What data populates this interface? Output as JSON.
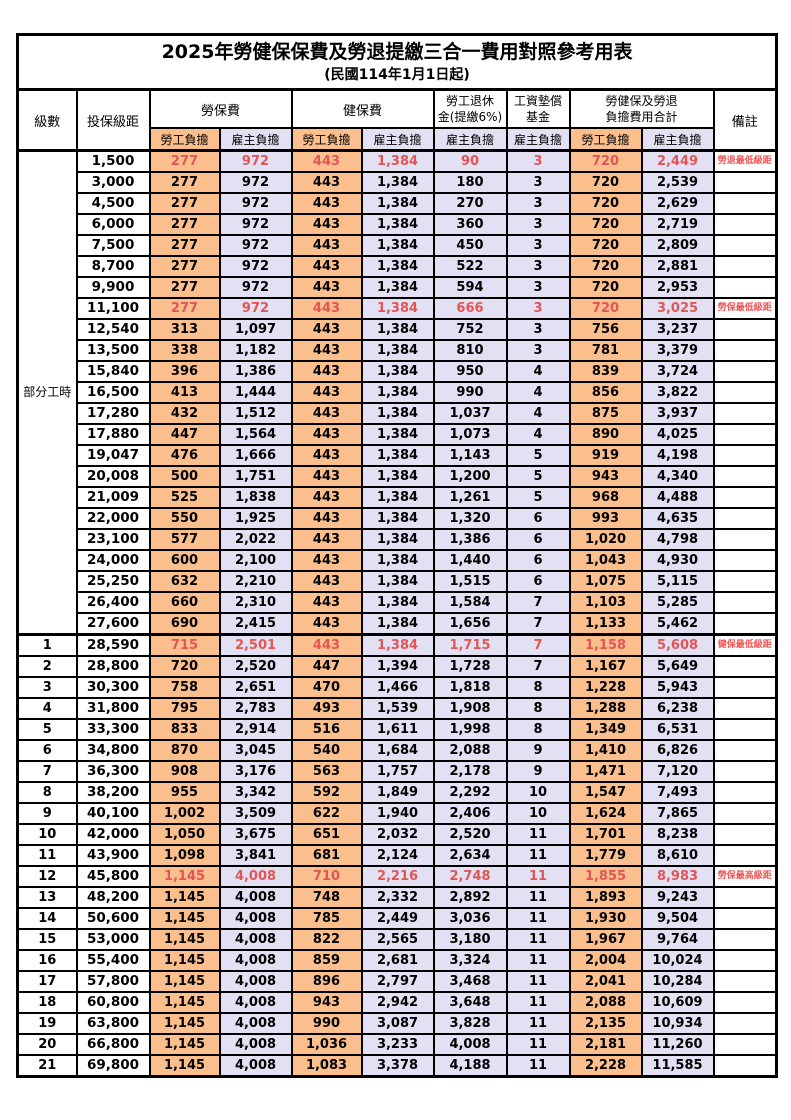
{
  "page": {
    "title": "2025年勞健保保費及勞退提繳三合一費用對照參考用表",
    "subtitle": "(民國114年1月1日起)"
  },
  "colors": {
    "employee_col_bg": "#FBBE8D",
    "employer_col_bg": "#E2E0F2",
    "highlight_text": "#E05656",
    "note_text": "#F25555",
    "border": "#000000"
  },
  "header": {
    "level": "級數",
    "bracket": "投保級距",
    "labor_group": "勞保費",
    "health_group": "健保費",
    "pension_line1": "勞工退休",
    "pension_line2": "金(提繳6%)",
    "fund_line1": "工資墊償",
    "fund_line2": "基金",
    "total_line1": "勞健保及勞退",
    "total_line2": "負擔費用合計",
    "note": "備註",
    "employee": "勞工負擔",
    "employer": "雇主負擔"
  },
  "row_group": {
    "label": "部分工時",
    "span": 23
  },
  "rows": [
    {
      "level": "",
      "bracket": "1,500",
      "labor_emp": "277",
      "labor_er": "972",
      "health_emp": "443",
      "health_er": "1,384",
      "pension_er": "90",
      "fund_er": "3",
      "total_emp": "720",
      "total_er": "2,449",
      "note": "勞退最低級距",
      "highlight": true,
      "thick_top": false
    },
    {
      "level": "",
      "bracket": "3,000",
      "labor_emp": "277",
      "labor_er": "972",
      "health_emp": "443",
      "health_er": "1,384",
      "pension_er": "180",
      "fund_er": "3",
      "total_emp": "720",
      "total_er": "2,539",
      "note": "",
      "highlight": false,
      "thick_top": false
    },
    {
      "level": "",
      "bracket": "4,500",
      "labor_emp": "277",
      "labor_er": "972",
      "health_emp": "443",
      "health_er": "1,384",
      "pension_er": "270",
      "fund_er": "3",
      "total_emp": "720",
      "total_er": "2,629",
      "note": "",
      "highlight": false,
      "thick_top": false
    },
    {
      "level": "",
      "bracket": "6,000",
      "labor_emp": "277",
      "labor_er": "972",
      "health_emp": "443",
      "health_er": "1,384",
      "pension_er": "360",
      "fund_er": "3",
      "total_emp": "720",
      "total_er": "2,719",
      "note": "",
      "highlight": false,
      "thick_top": false
    },
    {
      "level": "",
      "bracket": "7,500",
      "labor_emp": "277",
      "labor_er": "972",
      "health_emp": "443",
      "health_er": "1,384",
      "pension_er": "450",
      "fund_er": "3",
      "total_emp": "720",
      "total_er": "2,809",
      "note": "",
      "highlight": false,
      "thick_top": false
    },
    {
      "level": "",
      "bracket": "8,700",
      "labor_emp": "277",
      "labor_er": "972",
      "health_emp": "443",
      "health_er": "1,384",
      "pension_er": "522",
      "fund_er": "3",
      "total_emp": "720",
      "total_er": "2,881",
      "note": "",
      "highlight": false,
      "thick_top": false
    },
    {
      "level": "",
      "bracket": "9,900",
      "labor_emp": "277",
      "labor_er": "972",
      "health_emp": "443",
      "health_er": "1,384",
      "pension_er": "594",
      "fund_er": "3",
      "total_emp": "720",
      "total_er": "2,953",
      "note": "",
      "highlight": false,
      "thick_top": false
    },
    {
      "level": "",
      "bracket": "11,100",
      "labor_emp": "277",
      "labor_er": "972",
      "health_emp": "443",
      "health_er": "1,384",
      "pension_er": "666",
      "fund_er": "3",
      "total_emp": "720",
      "total_er": "3,025",
      "note": "勞保最低級距",
      "highlight": true,
      "thick_top": false
    },
    {
      "level": "",
      "bracket": "12,540",
      "labor_emp": "313",
      "labor_er": "1,097",
      "health_emp": "443",
      "health_er": "1,384",
      "pension_er": "752",
      "fund_er": "3",
      "total_emp": "756",
      "total_er": "3,237",
      "note": "",
      "highlight": false,
      "thick_top": false
    },
    {
      "level": "",
      "bracket": "13,500",
      "labor_emp": "338",
      "labor_er": "1,182",
      "health_emp": "443",
      "health_er": "1,384",
      "pension_er": "810",
      "fund_er": "3",
      "total_emp": "781",
      "total_er": "3,379",
      "note": "",
      "highlight": false,
      "thick_top": false
    },
    {
      "level": "",
      "bracket": "15,840",
      "labor_emp": "396",
      "labor_er": "1,386",
      "health_emp": "443",
      "health_er": "1,384",
      "pension_er": "950",
      "fund_er": "4",
      "total_emp": "839",
      "total_er": "3,724",
      "note": "",
      "highlight": false,
      "thick_top": false
    },
    {
      "level": "",
      "bracket": "16,500",
      "labor_emp": "413",
      "labor_er": "1,444",
      "health_emp": "443",
      "health_er": "1,384",
      "pension_er": "990",
      "fund_er": "4",
      "total_emp": "856",
      "total_er": "3,822",
      "note": "",
      "highlight": false,
      "thick_top": false
    },
    {
      "level": "",
      "bracket": "17,280",
      "labor_emp": "432",
      "labor_er": "1,512",
      "health_emp": "443",
      "health_er": "1,384",
      "pension_er": "1,037",
      "fund_er": "4",
      "total_emp": "875",
      "total_er": "3,937",
      "note": "",
      "highlight": false,
      "thick_top": false
    },
    {
      "level": "",
      "bracket": "17,880",
      "labor_emp": "447",
      "labor_er": "1,564",
      "health_emp": "443",
      "health_er": "1,384",
      "pension_er": "1,073",
      "fund_er": "4",
      "total_emp": "890",
      "total_er": "4,025",
      "note": "",
      "highlight": false,
      "thick_top": false
    },
    {
      "level": "",
      "bracket": "19,047",
      "labor_emp": "476",
      "labor_er": "1,666",
      "health_emp": "443",
      "health_er": "1,384",
      "pension_er": "1,143",
      "fund_er": "5",
      "total_emp": "919",
      "total_er": "4,198",
      "note": "",
      "highlight": false,
      "thick_top": false
    },
    {
      "level": "",
      "bracket": "20,008",
      "labor_emp": "500",
      "labor_er": "1,751",
      "health_emp": "443",
      "health_er": "1,384",
      "pension_er": "1,200",
      "fund_er": "5",
      "total_emp": "943",
      "total_er": "4,340",
      "note": "",
      "highlight": false,
      "thick_top": false
    },
    {
      "level": "",
      "bracket": "21,009",
      "labor_emp": "525",
      "labor_er": "1,838",
      "health_emp": "443",
      "health_er": "1,384",
      "pension_er": "1,261",
      "fund_er": "5",
      "total_emp": "968",
      "total_er": "4,488",
      "note": "",
      "highlight": false,
      "thick_top": false
    },
    {
      "level": "",
      "bracket": "22,000",
      "labor_emp": "550",
      "labor_er": "1,925",
      "health_emp": "443",
      "health_er": "1,384",
      "pension_er": "1,320",
      "fund_er": "6",
      "total_emp": "993",
      "total_er": "4,635",
      "note": "",
      "highlight": false,
      "thick_top": false
    },
    {
      "level": "",
      "bracket": "23,100",
      "labor_emp": "577",
      "labor_er": "2,022",
      "health_emp": "443",
      "health_er": "1,384",
      "pension_er": "1,386",
      "fund_er": "6",
      "total_emp": "1,020",
      "total_er": "4,798",
      "note": "",
      "highlight": false,
      "thick_top": false
    },
    {
      "level": "",
      "bracket": "24,000",
      "labor_emp": "600",
      "labor_er": "2,100",
      "health_emp": "443",
      "health_er": "1,384",
      "pension_er": "1,440",
      "fund_er": "6",
      "total_emp": "1,043",
      "total_er": "4,930",
      "note": "",
      "highlight": false,
      "thick_top": false
    },
    {
      "level": "",
      "bracket": "25,250",
      "labor_emp": "632",
      "labor_er": "2,210",
      "health_emp": "443",
      "health_er": "1,384",
      "pension_er": "1,515",
      "fund_er": "6",
      "total_emp": "1,075",
      "total_er": "5,115",
      "note": "",
      "highlight": false,
      "thick_top": false
    },
    {
      "level": "",
      "bracket": "26,400",
      "labor_emp": "660",
      "labor_er": "2,310",
      "health_emp": "443",
      "health_er": "1,384",
      "pension_er": "1,584",
      "fund_er": "7",
      "total_emp": "1,103",
      "total_er": "5,285",
      "note": "",
      "highlight": false,
      "thick_top": false
    },
    {
      "level": "",
      "bracket": "27,600",
      "labor_emp": "690",
      "labor_er": "2,415",
      "health_emp": "443",
      "health_er": "1,384",
      "pension_er": "1,656",
      "fund_er": "7",
      "total_emp": "1,133",
      "total_er": "5,462",
      "note": "",
      "highlight": false,
      "thick_top": false
    },
    {
      "level": "1",
      "bracket": "28,590",
      "labor_emp": "715",
      "labor_er": "2,501",
      "health_emp": "443",
      "health_er": "1,384",
      "pension_er": "1,715",
      "fund_er": "7",
      "total_emp": "1,158",
      "total_er": "5,608",
      "note": "健保最低級距",
      "highlight": true,
      "thick_top": true
    },
    {
      "level": "2",
      "bracket": "28,800",
      "labor_emp": "720",
      "labor_er": "2,520",
      "health_emp": "447",
      "health_er": "1,394",
      "pension_er": "1,728",
      "fund_er": "7",
      "total_emp": "1,167",
      "total_er": "5,649",
      "note": "",
      "highlight": false,
      "thick_top": false
    },
    {
      "level": "3",
      "bracket": "30,300",
      "labor_emp": "758",
      "labor_er": "2,651",
      "health_emp": "470",
      "health_er": "1,466",
      "pension_er": "1,818",
      "fund_er": "8",
      "total_emp": "1,228",
      "total_er": "5,943",
      "note": "",
      "highlight": false,
      "thick_top": false
    },
    {
      "level": "4",
      "bracket": "31,800",
      "labor_emp": "795",
      "labor_er": "2,783",
      "health_emp": "493",
      "health_er": "1,539",
      "pension_er": "1,908",
      "fund_er": "8",
      "total_emp": "1,288",
      "total_er": "6,238",
      "note": "",
      "highlight": false,
      "thick_top": false
    },
    {
      "level": "5",
      "bracket": "33,300",
      "labor_emp": "833",
      "labor_er": "2,914",
      "health_emp": "516",
      "health_er": "1,611",
      "pension_er": "1,998",
      "fund_er": "8",
      "total_emp": "1,349",
      "total_er": "6,531",
      "note": "",
      "highlight": false,
      "thick_top": false
    },
    {
      "level": "6",
      "bracket": "34,800",
      "labor_emp": "870",
      "labor_er": "3,045",
      "health_emp": "540",
      "health_er": "1,684",
      "pension_er": "2,088",
      "fund_er": "9",
      "total_emp": "1,410",
      "total_er": "6,826",
      "note": "",
      "highlight": false,
      "thick_top": false
    },
    {
      "level": "7",
      "bracket": "36,300",
      "labor_emp": "908",
      "labor_er": "3,176",
      "health_emp": "563",
      "health_er": "1,757",
      "pension_er": "2,178",
      "fund_er": "9",
      "total_emp": "1,471",
      "total_er": "7,120",
      "note": "",
      "highlight": false,
      "thick_top": false
    },
    {
      "level": "8",
      "bracket": "38,200",
      "labor_emp": "955",
      "labor_er": "3,342",
      "health_emp": "592",
      "health_er": "1,849",
      "pension_er": "2,292",
      "fund_er": "10",
      "total_emp": "1,547",
      "total_er": "7,493",
      "note": "",
      "highlight": false,
      "thick_top": false
    },
    {
      "level": "9",
      "bracket": "40,100",
      "labor_emp": "1,002",
      "labor_er": "3,509",
      "health_emp": "622",
      "health_er": "1,940",
      "pension_er": "2,406",
      "fund_er": "10",
      "total_emp": "1,624",
      "total_er": "7,865",
      "note": "",
      "highlight": false,
      "thick_top": false
    },
    {
      "level": "10",
      "bracket": "42,000",
      "labor_emp": "1,050",
      "labor_er": "3,675",
      "health_emp": "651",
      "health_er": "2,032",
      "pension_er": "2,520",
      "fund_er": "11",
      "total_emp": "1,701",
      "total_er": "8,238",
      "note": "",
      "highlight": false,
      "thick_top": false
    },
    {
      "level": "11",
      "bracket": "43,900",
      "labor_emp": "1,098",
      "labor_er": "3,841",
      "health_emp": "681",
      "health_er": "2,124",
      "pension_er": "2,634",
      "fund_er": "11",
      "total_emp": "1,779",
      "total_er": "8,610",
      "note": "",
      "highlight": false,
      "thick_top": false
    },
    {
      "level": "12",
      "bracket": "45,800",
      "labor_emp": "1,145",
      "labor_er": "4,008",
      "health_emp": "710",
      "health_er": "2,216",
      "pension_er": "2,748",
      "fund_er": "11",
      "total_emp": "1,855",
      "total_er": "8,983",
      "note": "勞保最高級距",
      "highlight": true,
      "thick_top": false
    },
    {
      "level": "13",
      "bracket": "48,200",
      "labor_emp": "1,145",
      "labor_er": "4,008",
      "health_emp": "748",
      "health_er": "2,332",
      "pension_er": "2,892",
      "fund_er": "11",
      "total_emp": "1,893",
      "total_er": "9,243",
      "note": "",
      "highlight": false,
      "thick_top": false
    },
    {
      "level": "14",
      "bracket": "50,600",
      "labor_emp": "1,145",
      "labor_er": "4,008",
      "health_emp": "785",
      "health_er": "2,449",
      "pension_er": "3,036",
      "fund_er": "11",
      "total_emp": "1,930",
      "total_er": "9,504",
      "note": "",
      "highlight": false,
      "thick_top": false
    },
    {
      "level": "15",
      "bracket": "53,000",
      "labor_emp": "1,145",
      "labor_er": "4,008",
      "health_emp": "822",
      "health_er": "2,565",
      "pension_er": "3,180",
      "fund_er": "11",
      "total_emp": "1,967",
      "total_er": "9,764",
      "note": "",
      "highlight": false,
      "thick_top": false
    },
    {
      "level": "16",
      "bracket": "55,400",
      "labor_emp": "1,145",
      "labor_er": "4,008",
      "health_emp": "859",
      "health_er": "2,681",
      "pension_er": "3,324",
      "fund_er": "11",
      "total_emp": "2,004",
      "total_er": "10,024",
      "note": "",
      "highlight": false,
      "thick_top": false
    },
    {
      "level": "17",
      "bracket": "57,800",
      "labor_emp": "1,145",
      "labor_er": "4,008",
      "health_emp": "896",
      "health_er": "2,797",
      "pension_er": "3,468",
      "fund_er": "11",
      "total_emp": "2,041",
      "total_er": "10,284",
      "note": "",
      "highlight": false,
      "thick_top": false
    },
    {
      "level": "18",
      "bracket": "60,800",
      "labor_emp": "1,145",
      "labor_er": "4,008",
      "health_emp": "943",
      "health_er": "2,942",
      "pension_er": "3,648",
      "fund_er": "11",
      "total_emp": "2,088",
      "total_er": "10,609",
      "note": "",
      "highlight": false,
      "thick_top": false
    },
    {
      "level": "19",
      "bracket": "63,800",
      "labor_emp": "1,145",
      "labor_er": "4,008",
      "health_emp": "990",
      "health_er": "3,087",
      "pension_er": "3,828",
      "fund_er": "11",
      "total_emp": "2,135",
      "total_er": "10,934",
      "note": "",
      "highlight": false,
      "thick_top": false
    },
    {
      "level": "20",
      "bracket": "66,800",
      "labor_emp": "1,145",
      "labor_er": "4,008",
      "health_emp": "1,036",
      "health_er": "3,233",
      "pension_er": "4,008",
      "fund_er": "11",
      "total_emp": "2,181",
      "total_er": "11,260",
      "note": "",
      "highlight": false,
      "thick_top": false
    },
    {
      "level": "21",
      "bracket": "69,800",
      "labor_emp": "1,145",
      "labor_er": "4,008",
      "health_emp": "1,083",
      "health_er": "3,378",
      "pension_er": "4,188",
      "fund_er": "11",
      "total_emp": "2,228",
      "total_er": "11,585",
      "note": "",
      "highlight": false,
      "thick_top": false
    }
  ]
}
